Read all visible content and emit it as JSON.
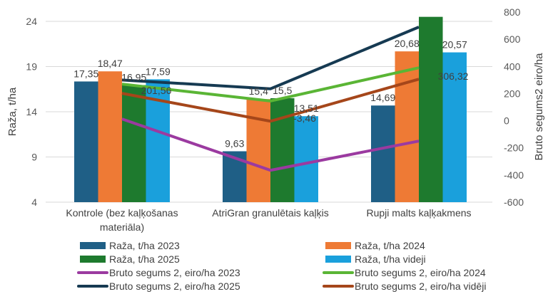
{
  "chart_data": {
    "type": "bar+line",
    "title": "",
    "categories": [
      "Kontrole (bez kaļķošanas materiāla)",
      "AtriGran  granulētais kaļķis",
      "Rupji malts kaļķakmens"
    ],
    "category_lines": [
      [
        "Kontrole (bez kaļķošanas",
        "materiāla)"
      ],
      [
        "AtriGran  granulētais kaļķis"
      ],
      [
        "Rupji malts kaļķakmens"
      ]
    ],
    "left_axis": {
      "label": "Raža, t/ha",
      "ylim": [
        4,
        24
      ],
      "ticks": [
        4,
        9,
        14,
        19,
        24
      ]
    },
    "right_axis": {
      "label": "Bruto segums2 eiro/ha",
      "ylim": [
        -600,
        800
      ],
      "ticks": [
        -600,
        -400,
        -200,
        0,
        200,
        400,
        600,
        800
      ]
    },
    "grid": true,
    "legend_position": "bottom",
    "bar_series": [
      {
        "name": "Raža, t/ha 2023",
        "color": "#1f5f86",
        "values": [
          17.35,
          9.63,
          14.69
        ],
        "labels": [
          "17,35",
          "9,63",
          "14,69"
        ]
      },
      {
        "name": "Raža, t/ha 2024",
        "color": "#ee7a35",
        "values": [
          18.47,
          15.4,
          20.68
        ],
        "labels": [
          "18,47",
          "15,4",
          "20,68"
        ]
      },
      {
        "name": "Raža, t/ha 2025",
        "color": "#1e7a2e",
        "values": [
          16.95,
          15.5,
          24.5
        ],
        "labels": [
          "16,95",
          "15,5",
          ""
        ]
      },
      {
        "name": "Raža, t/ha videji",
        "color": "#1aa0dc",
        "values": [
          17.59,
          13.51,
          20.57
        ],
        "labels": [
          "17,59",
          "13,51",
          "20,57"
        ]
      }
    ],
    "line_series": [
      {
        "name": "Bruto segums 2, eiro/ha 2023",
        "color": "#9b3aa0",
        "values": [
          13,
          -365,
          -150
        ],
        "labels": [
          "",
          "",
          ""
        ]
      },
      {
        "name": "Bruto segums 2, eiro/ha 2024",
        "color": "#5ab535",
        "values": [
          270,
          145,
          390
        ],
        "labels": [
          "",
          "",
          ""
        ]
      },
      {
        "name": "Bruto segums 2, eiro/ha 2025",
        "color": "#163a52",
        "values": [
          300,
          235,
          690
        ],
        "labels": [
          "",
          "",
          ""
        ]
      },
      {
        "name": "Bruto segums 2, eiro/ha vidēji",
        "color": "#a5461a",
        "values": [
          201.56,
          -3.46,
          306.32
        ],
        "labels": [
          "201,56",
          "-3,46",
          "306,32"
        ]
      }
    ],
    "legend": [
      {
        "name": "Raža, t/ha 2023",
        "kind": "bar",
        "color": "#1f5f86"
      },
      {
        "name": "Raža, t/ha 2024",
        "kind": "bar",
        "color": "#ee7a35"
      },
      {
        "name": "Raža, t/ha 2025",
        "kind": "bar",
        "color": "#1e7a2e"
      },
      {
        "name": "Raža, t/ha videji",
        "kind": "bar",
        "color": "#1aa0dc"
      },
      {
        "name": "Bruto segums 2, eiro/ha 2023",
        "kind": "line",
        "color": "#9b3aa0"
      },
      {
        "name": "Bruto segums 2, eiro/ha 2024",
        "kind": "line",
        "color": "#5ab535"
      },
      {
        "name": "Bruto segums 2, eiro/ha 2025",
        "kind": "line",
        "color": "#163a52"
      },
      {
        "name": "Bruto segums 2, eiro/ha vidēji",
        "kind": "line",
        "color": "#a5461a"
      }
    ]
  }
}
